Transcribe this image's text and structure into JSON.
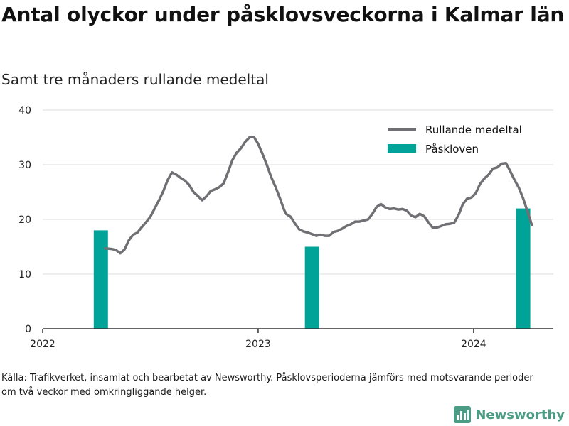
{
  "header": {
    "title": "Antal olyckor under påsklovsveckorna i Kalmar län",
    "subtitle": "Samt tre månaders rullande medeltal"
  },
  "footer": {
    "source": "Källa: Trafikverket, insamlat och bearbetat av Newsworthy. Påsklovsperioderna jämförs med motsvarande perioder om två veckor med omkringliggande helger.",
    "logo_text": "Newsworthy"
  },
  "colors": {
    "line": "#6f6f74",
    "bar": "#00a398",
    "grid": "#dddddd",
    "logo": "#4a9c84"
  },
  "chart_data": {
    "type": "bar+line",
    "ylim": [
      0,
      40
    ],
    "yticks": [
      0,
      10,
      20,
      30,
      40
    ],
    "xlim": [
      2022.0,
      2024.37
    ],
    "xticks": [
      {
        "value": 2022,
        "label": "2022"
      },
      {
        "value": 2023,
        "label": "2023"
      },
      {
        "value": 2024,
        "label": "2024"
      }
    ],
    "grid": true,
    "legend_position": "top-right",
    "legend": [
      {
        "label": "Rullande medeltal",
        "kind": "line"
      },
      {
        "label": "Påskloven",
        "kind": "bar"
      }
    ],
    "bars": {
      "name": "Påskloven",
      "points": [
        {
          "x": 2022.27,
          "y": 18
        },
        {
          "x": 2023.25,
          "y": 15
        },
        {
          "x": 2024.23,
          "y": 22
        }
      ]
    },
    "line": {
      "name": "Rullande medeltal",
      "points": [
        [
          2022.29,
          14.7
        ],
        [
          2022.32,
          14.6
        ],
        [
          2022.34,
          14.4
        ],
        [
          2022.36,
          13.8
        ],
        [
          2022.38,
          14.5
        ],
        [
          2022.4,
          16.2
        ],
        [
          2022.42,
          17.2
        ],
        [
          2022.44,
          17.6
        ],
        [
          2022.46,
          18.6
        ],
        [
          2022.48,
          19.5
        ],
        [
          2022.5,
          20.5
        ],
        [
          2022.52,
          22.0
        ],
        [
          2022.54,
          23.5
        ],
        [
          2022.56,
          25.2
        ],
        [
          2022.58,
          27.2
        ],
        [
          2022.6,
          28.6
        ],
        [
          2022.62,
          28.2
        ],
        [
          2022.64,
          27.6
        ],
        [
          2022.66,
          27.1
        ],
        [
          2022.68,
          26.3
        ],
        [
          2022.7,
          25.0
        ],
        [
          2022.72,
          24.3
        ],
        [
          2022.74,
          23.5
        ],
        [
          2022.76,
          24.2
        ],
        [
          2022.78,
          25.2
        ],
        [
          2022.8,
          25.5
        ],
        [
          2022.82,
          25.9
        ],
        [
          2022.84,
          26.6
        ],
        [
          2022.86,
          28.6
        ],
        [
          2022.88,
          30.8
        ],
        [
          2022.9,
          32.2
        ],
        [
          2022.92,
          33.0
        ],
        [
          2022.94,
          34.2
        ],
        [
          2022.96,
          35.0
        ],
        [
          2022.98,
          35.1
        ],
        [
          2023.0,
          33.8
        ],
        [
          2023.02,
          32.0
        ],
        [
          2023.04,
          30.0
        ],
        [
          2023.06,
          27.8
        ],
        [
          2023.08,
          26.0
        ],
        [
          2023.1,
          24.0
        ],
        [
          2023.12,
          21.8
        ],
        [
          2023.13,
          21.0
        ],
        [
          2023.15,
          20.5
        ],
        [
          2023.17,
          19.3
        ],
        [
          2023.19,
          18.2
        ],
        [
          2023.21,
          17.8
        ],
        [
          2023.23,
          17.6
        ],
        [
          2023.25,
          17.3
        ],
        [
          2023.27,
          17.0
        ],
        [
          2023.29,
          17.2
        ],
        [
          2023.31,
          17.0
        ],
        [
          2023.33,
          17.0
        ],
        [
          2023.35,
          17.7
        ],
        [
          2023.37,
          17.9
        ],
        [
          2023.39,
          18.3
        ],
        [
          2023.41,
          18.8
        ],
        [
          2023.43,
          19.1
        ],
        [
          2023.45,
          19.6
        ],
        [
          2023.47,
          19.6
        ],
        [
          2023.49,
          19.8
        ],
        [
          2023.51,
          20.0
        ],
        [
          2023.53,
          21.0
        ],
        [
          2023.55,
          22.3
        ],
        [
          2023.57,
          22.8
        ],
        [
          2023.59,
          22.2
        ],
        [
          2023.61,
          21.9
        ],
        [
          2023.63,
          22.0
        ],
        [
          2023.65,
          21.8
        ],
        [
          2023.67,
          21.9
        ],
        [
          2023.69,
          21.6
        ],
        [
          2023.71,
          20.7
        ],
        [
          2023.73,
          20.4
        ],
        [
          2023.75,
          21.0
        ],
        [
          2023.77,
          20.6
        ],
        [
          2023.79,
          19.5
        ],
        [
          2023.81,
          18.5
        ],
        [
          2023.83,
          18.5
        ],
        [
          2023.85,
          18.8
        ],
        [
          2023.87,
          19.1
        ],
        [
          2023.89,
          19.2
        ],
        [
          2023.91,
          19.4
        ],
        [
          2023.93,
          20.8
        ],
        [
          2023.95,
          22.8
        ],
        [
          2023.97,
          23.8
        ],
        [
          2023.99,
          24.0
        ],
        [
          2024.01,
          24.8
        ],
        [
          2024.03,
          26.5
        ],
        [
          2024.05,
          27.5
        ],
        [
          2024.07,
          28.2
        ],
        [
          2024.09,
          29.3
        ],
        [
          2024.11,
          29.5
        ],
        [
          2024.13,
          30.2
        ],
        [
          2024.15,
          30.3
        ],
        [
          2024.17,
          28.8
        ],
        [
          2024.19,
          27.2
        ],
        [
          2024.21,
          25.8
        ],
        [
          2024.23,
          23.8
        ],
        [
          2024.25,
          21.5
        ],
        [
          2024.27,
          19.0
        ]
      ]
    }
  }
}
